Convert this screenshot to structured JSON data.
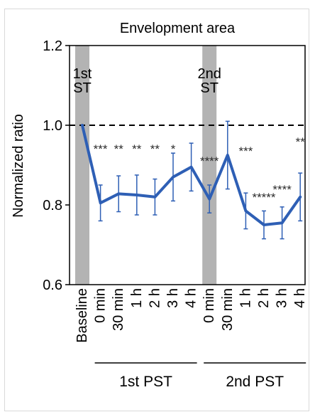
{
  "chart_data": {
    "type": "line",
    "title": "Envelopment area",
    "xlabel": "",
    "ylabel": "Normalized ratio",
    "ylim": [
      0.6,
      1.2
    ],
    "yticks": [
      "0.6",
      "0.8",
      "1.0",
      "1.2"
    ],
    "reference_line": 1.0,
    "categories": [
      "Baseline",
      "0 min",
      "30 min",
      "1 h",
      "2 h",
      "3 h",
      "4 h",
      "0 min",
      "30 min",
      "1 h",
      "2 h",
      "3 h",
      "4 h"
    ],
    "series": [
      {
        "values": [
          1.0,
          0.805,
          0.828,
          0.825,
          0.82,
          0.87,
          0.895,
          0.815,
          0.925,
          0.785,
          0.75,
          0.755,
          0.82
        ],
        "error": [
          0,
          0.045,
          0.045,
          0.05,
          0.045,
          0.06,
          0.06,
          0.035,
          0.085,
          0.045,
          0.035,
          0.04,
          0.06
        ],
        "color": "#2e5fb5"
      }
    ],
    "significance": [
      "",
      "***",
      "**",
      "**",
      "**",
      "*",
      "",
      "****",
      "",
      "***",
      "*****",
      "****",
      "**"
    ],
    "stimulation_markers": [
      {
        "label_line1": "1st",
        "label_line2": "ST",
        "category_index": 0
      },
      {
        "label_line1": "2nd",
        "label_line2": "ST",
        "category_index": 7
      }
    ],
    "periods": [
      {
        "label": "1st PST",
        "from_index": 1,
        "to_index": 6
      },
      {
        "label": "2nd PST",
        "from_index": 7,
        "to_index": 12
      }
    ],
    "grid": false,
    "legend": "none"
  },
  "colors": {
    "line": "#2e5fb5",
    "marker_band": "#b3b3b3",
    "reference": "#000000"
  }
}
